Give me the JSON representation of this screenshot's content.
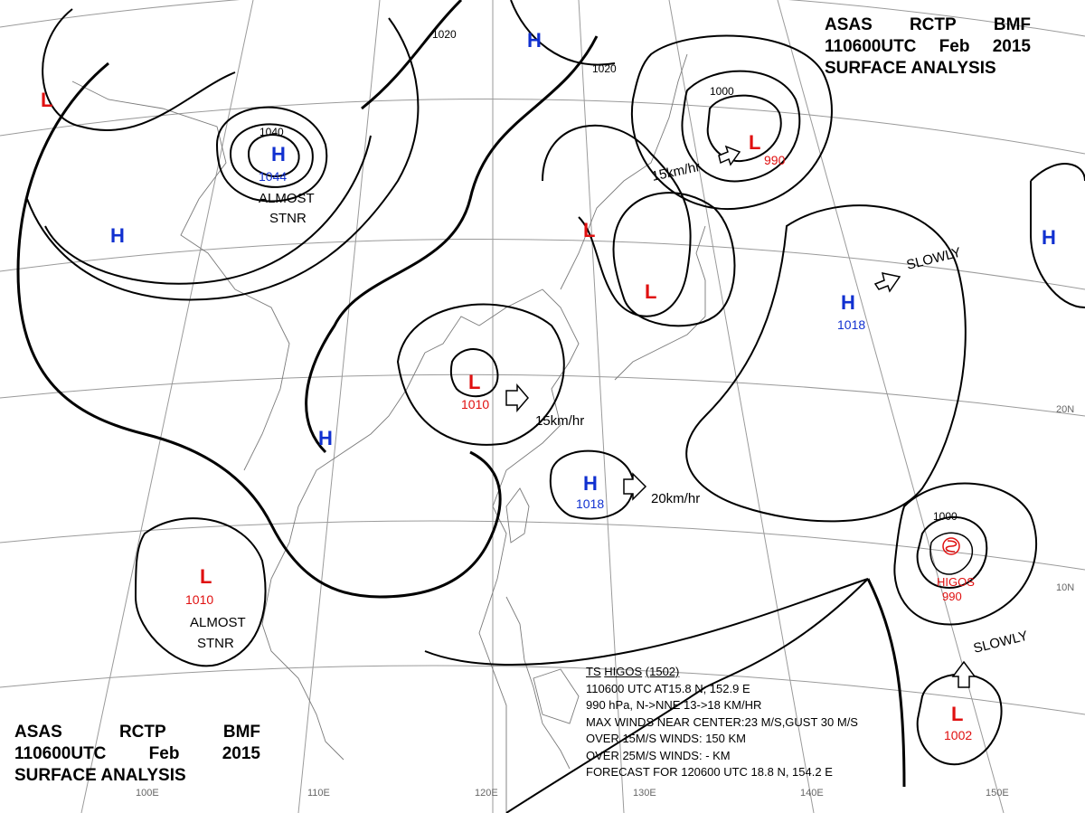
{
  "header": {
    "agency": "ASAS",
    "station": "RCTP",
    "office": "BMF",
    "time_code": "110600UTC",
    "month": "Feb",
    "year": "2015",
    "product": "SURFACE  ANALYSIS"
  },
  "isobar_labels": [
    "1020",
    "1020",
    "1040",
    "1000",
    "1000"
  ],
  "pressure_centers": [
    {
      "type": "L",
      "value": ""
    },
    {
      "type": "H",
      "value": "1044"
    },
    {
      "type": "H",
      "value": ""
    },
    {
      "type": "H",
      "value": ""
    },
    {
      "type": "L",
      "value": "990"
    },
    {
      "type": "L",
      "value": ""
    },
    {
      "type": "L",
      "value": ""
    },
    {
      "type": "H",
      "value": "1018"
    },
    {
      "type": "H",
      "value": ""
    },
    {
      "type": "L",
      "value": "1010"
    },
    {
      "type": "H",
      "value": ""
    },
    {
      "type": "H",
      "value": "1018"
    },
    {
      "type": "L",
      "value": "1010"
    },
    {
      "type": "L",
      "value": "1002"
    }
  ],
  "motion_labels": [
    "ALMOST",
    "STNR",
    "15km/hr",
    "SLOWLY",
    "15km/hr",
    "20km/hr",
    "ALMOST",
    "STNR",
    "SLOWLY"
  ],
  "typhoon": {
    "name": "HIGOS",
    "pressure": "990"
  },
  "longitude_labels": [
    "100E",
    "110E",
    "120E",
    "130E",
    "140E",
    "150E"
  ],
  "latitude_labels": [
    "20N",
    "10N"
  ],
  "ts_bulletin": {
    "line1_a": "TS",
    "line1_b": "HIGOS",
    "line1_c": "(1502)",
    "line2": "110600 UTC  AT15.8 N, 152.9 E",
    "line3": "990 hPa, N->NNE  13->18 KM/HR",
    "line4": "MAX WINDS NEAR CENTER:23 M/S,GUST 30 M/S",
    "line5": "OVER 15M/S WINDS: 150 KM",
    "line6": "OVER 25M/S WINDS: - KM",
    "line7": "FORECAST FOR 120600 UTC 18.8 N, 154.2 E"
  },
  "colors": {
    "high": "#1030d0",
    "low": "#e01010",
    "isobar": "#000000",
    "grid": "#888888",
    "coast": "#777777"
  }
}
